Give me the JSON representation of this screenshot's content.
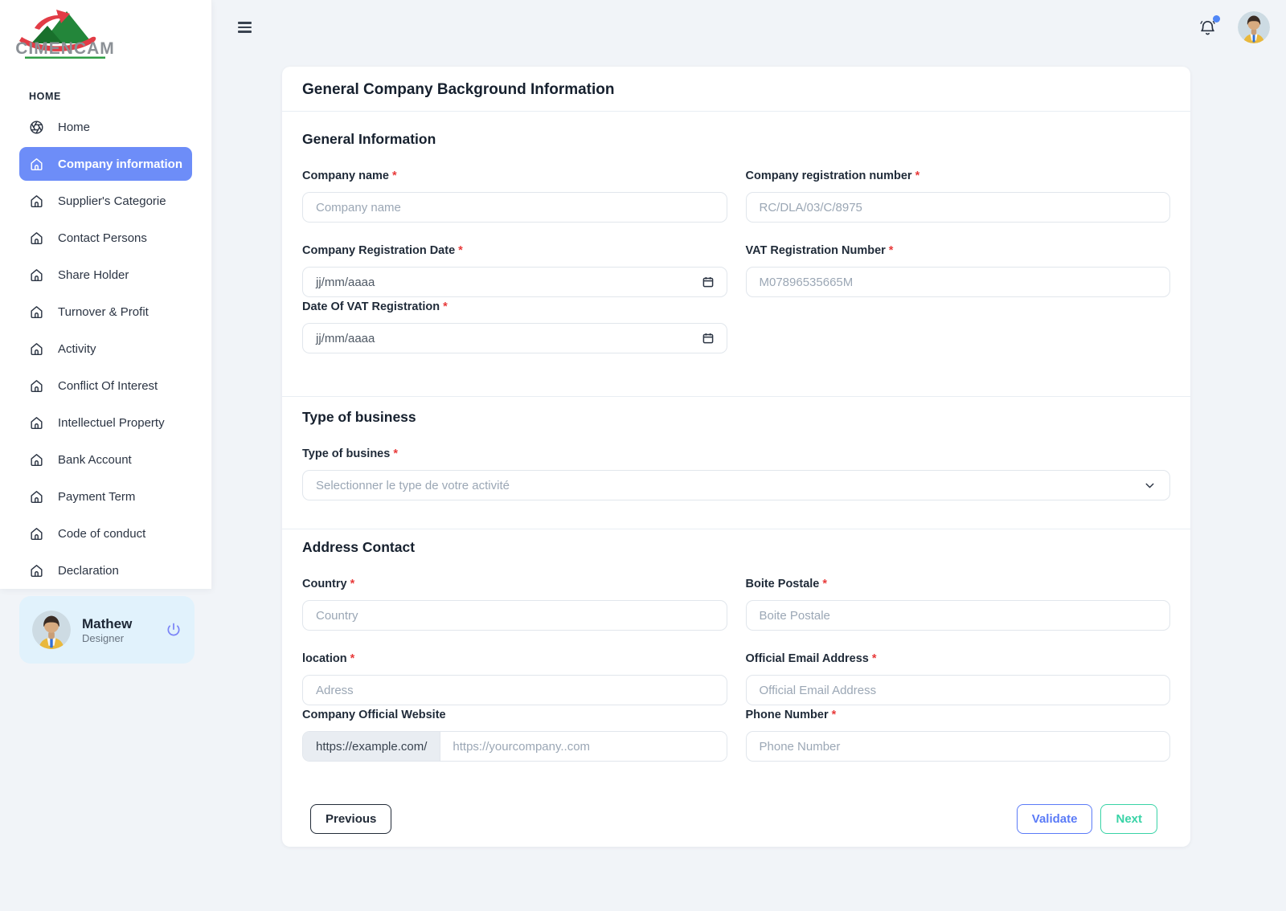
{
  "brand": {
    "name": "CIMENCAM"
  },
  "colors": {
    "accent": "#6d8df8",
    "validate": "#5b7bf7",
    "next": "#38d3a6",
    "required": "#e83a3a",
    "user_card_bg": "#e1f2fc",
    "notification_dot": "#4f86f7",
    "logo_green": "#23863a",
    "logo_red": "#e23c46"
  },
  "sidebar": {
    "section_label": "HOME",
    "items": [
      {
        "label": "Home",
        "icon": "aperture-icon",
        "active": false
      },
      {
        "label": "Company information",
        "icon": "home-icon",
        "active": true
      },
      {
        "label": "Supplier's Categorie",
        "icon": "home-icon",
        "active": false
      },
      {
        "label": "Contact Persons",
        "icon": "home-icon",
        "active": false
      },
      {
        "label": "Share Holder",
        "icon": "home-icon",
        "active": false
      },
      {
        "label": "Turnover & Profit",
        "icon": "home-icon",
        "active": false
      },
      {
        "label": "Activity",
        "icon": "home-icon",
        "active": false
      },
      {
        "label": "Conflict Of Interest",
        "icon": "home-icon",
        "active": false
      },
      {
        "label": "Intellectuel Property",
        "icon": "home-icon",
        "active": false
      },
      {
        "label": "Bank Account",
        "icon": "home-icon",
        "active": false
      },
      {
        "label": "Payment Term",
        "icon": "home-icon",
        "active": false
      },
      {
        "label": "Code of conduct",
        "icon": "home-icon",
        "active": false
      },
      {
        "label": "Declaration",
        "icon": "home-icon",
        "active": false
      }
    ]
  },
  "user": {
    "name": "Mathew",
    "role": "Designer"
  },
  "form": {
    "title": "General Company Background Information",
    "required_marker": "*",
    "sections": {
      "general": {
        "heading": "General Information",
        "fields": {
          "company_name": {
            "label": "Company name",
            "placeholder": "Company name"
          },
          "company_reg_number": {
            "label": "Company registration number",
            "placeholder": "RC/DLA/03/C/8975"
          },
          "company_reg_date": {
            "label": "Company Registration Date",
            "placeholder": "jj/mm/aaaa"
          },
          "vat_number": {
            "label": "VAT Registration Number",
            "placeholder": "M07896535665M"
          },
          "vat_date": {
            "label": "Date Of VAT Registration",
            "placeholder": "jj/mm/aaaa"
          }
        }
      },
      "business": {
        "heading": "Type of business",
        "field_label": "Type of busines",
        "select_placeholder": "Selectionner le type de votre activité"
      },
      "address": {
        "heading": "Address Contact",
        "fields": {
          "country": {
            "label": "Country",
            "placeholder": "Country"
          },
          "boite_postale": {
            "label": "Boite Postale",
            "placeholder": "Boite Postale"
          },
          "location": {
            "label": "location",
            "placeholder": "Adress"
          },
          "official_email": {
            "label": "Official Email Address",
            "placeholder": "Official Email Address"
          },
          "website": {
            "label": "Company Official Website",
            "prefix": "https://example.com/",
            "placeholder": "https://yourcompany..com"
          },
          "phone": {
            "label": "Phone Number",
            "placeholder": "Phone Number"
          }
        }
      }
    },
    "buttons": {
      "previous": "Previous",
      "validate": "Validate",
      "next": "Next"
    }
  }
}
